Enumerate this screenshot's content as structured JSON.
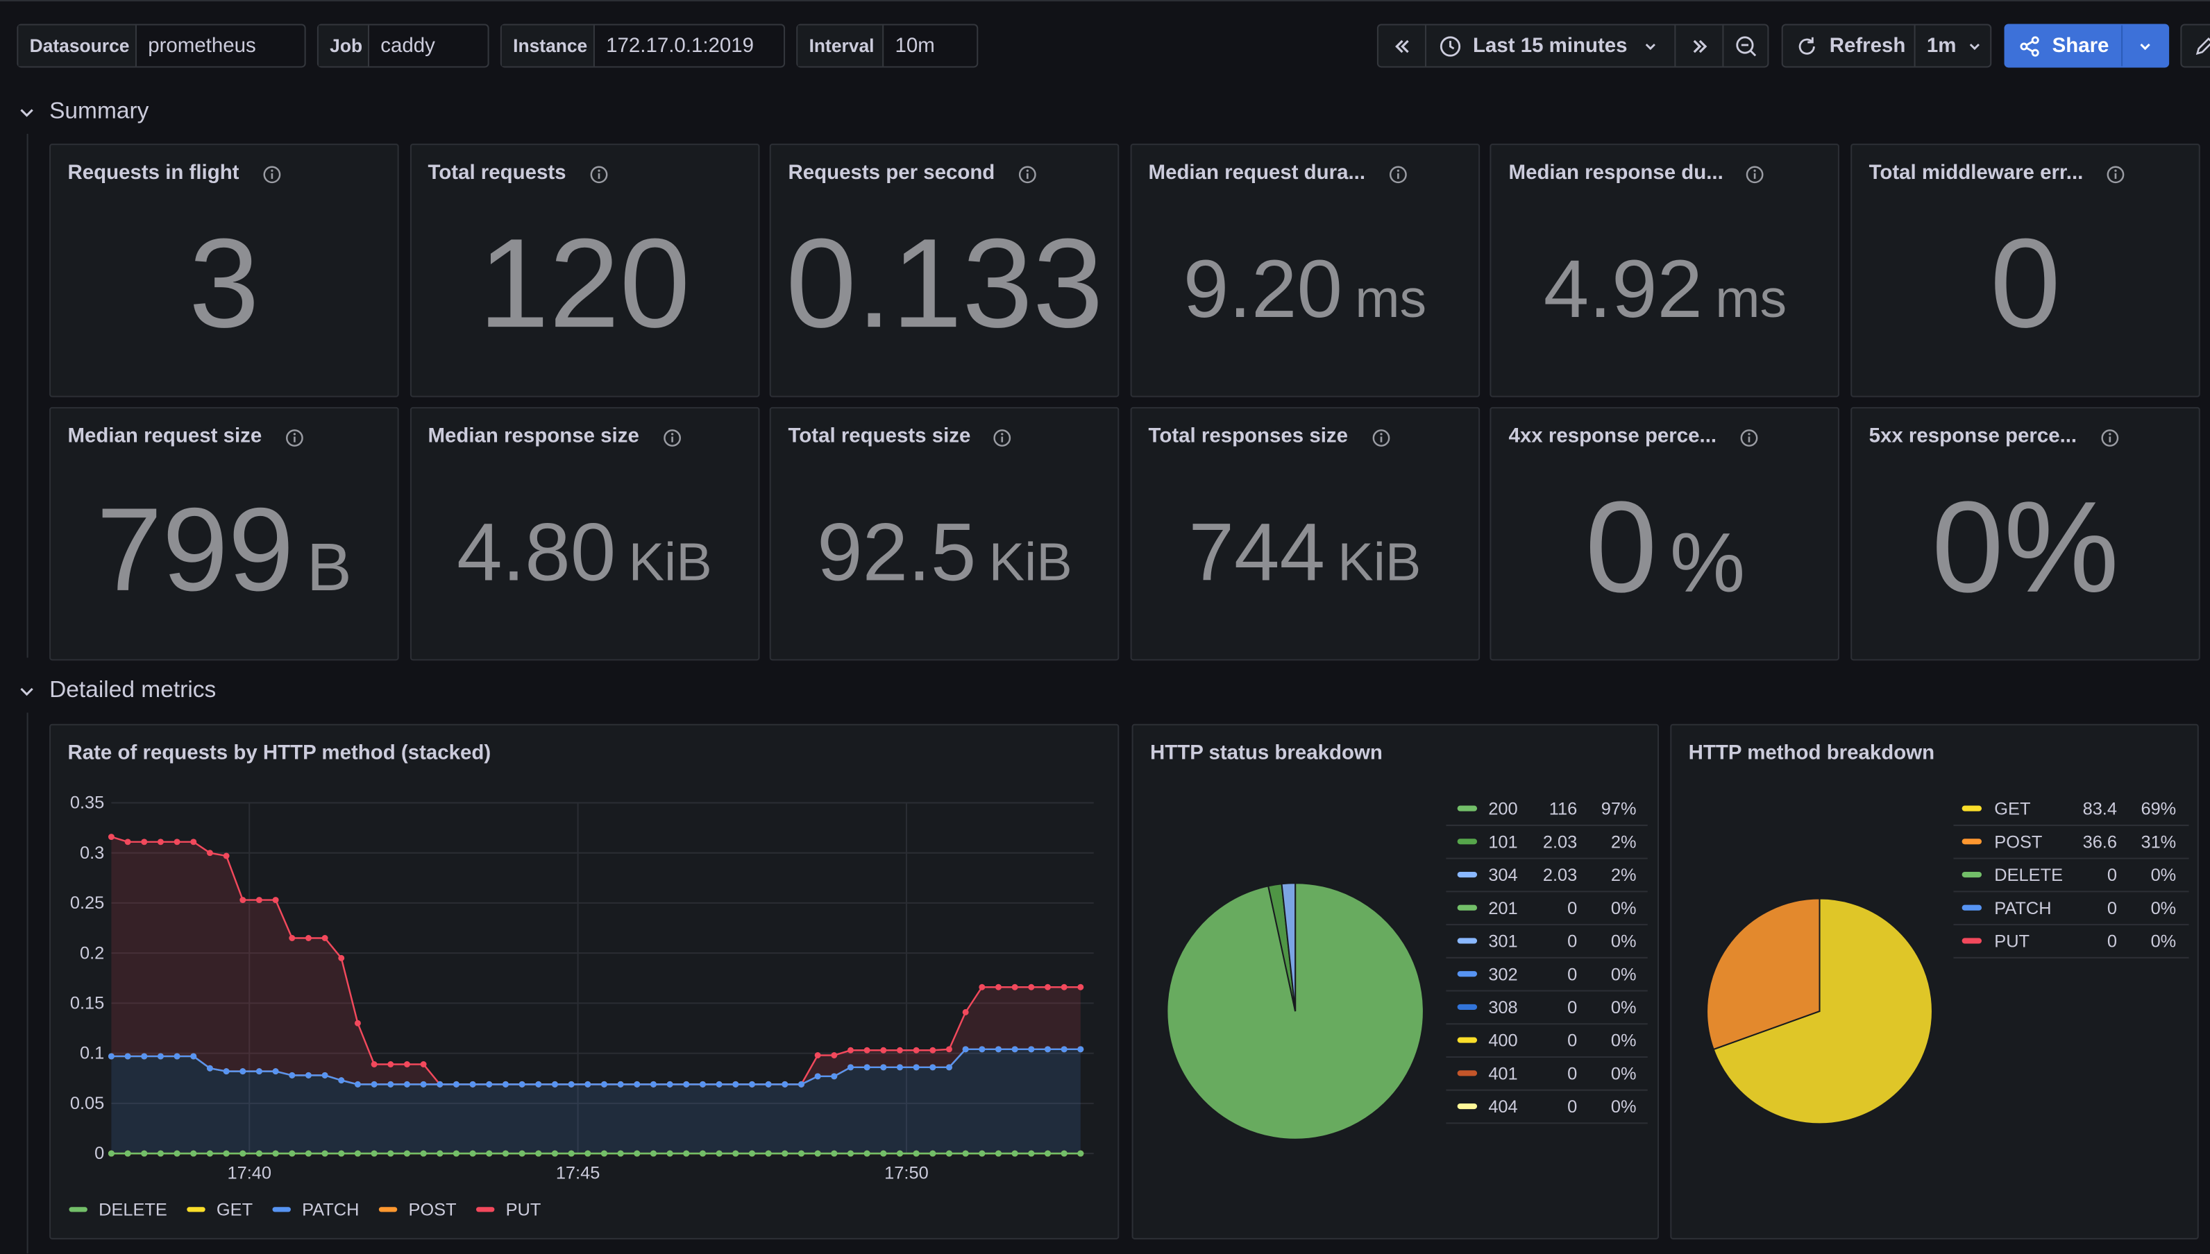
{
  "toolbar": {
    "variables": [
      {
        "label": "Datasource",
        "value": "prometheus"
      },
      {
        "label": "Job",
        "value": "caddy"
      },
      {
        "label": "Instance",
        "value": "172.17.0.1:2019"
      },
      {
        "label": "Interval",
        "value": "10m"
      }
    ],
    "time_range": "Last 15 minutes",
    "refresh": "Refresh",
    "refresh_interval": "1m",
    "share": "Share"
  },
  "rows": [
    {
      "title": "Summary"
    },
    {
      "title": "Detailed metrics"
    }
  ],
  "stats": [
    {
      "title": "Requests in flight",
      "value": "3"
    },
    {
      "title": "Total requests",
      "value": "120"
    },
    {
      "title": "Requests per second",
      "value": "0.133"
    },
    {
      "title": "Median request dura...",
      "value": "9.20",
      "unit": "ms"
    },
    {
      "title": "Median response du...",
      "value": "4.92",
      "unit": "ms"
    },
    {
      "title": "Total middleware err...",
      "value": "0"
    },
    {
      "title": "Median request size",
      "value": "799",
      "unit": "B"
    },
    {
      "title": "Median response size",
      "value": "4.80",
      "unit": "KiB"
    },
    {
      "title": "Total requests size",
      "value": "92.5",
      "unit": "KiB"
    },
    {
      "title": "Total responses size",
      "value": "744",
      "unit": "KiB"
    },
    {
      "title": "4xx response perce...",
      "value": "0",
      "unit": "%"
    },
    {
      "title": "5xx response perce...",
      "value": "0",
      "unit": "%"
    }
  ],
  "chart_data": [
    {
      "type": "line",
      "stacked": true,
      "title": "Rate of requests by HTTP method (stacked)",
      "x": [
        37.9,
        38.15,
        38.4,
        38.65,
        38.9,
        39.15,
        39.4,
        39.65,
        39.9,
        40.15,
        40.4,
        40.65,
        40.9,
        41.15,
        41.4,
        41.65,
        41.9,
        42.15,
        42.4,
        42.65,
        42.9,
        43.15,
        43.4,
        43.65,
        43.9,
        44.15,
        44.4,
        44.65,
        44.9,
        45.15,
        45.4,
        45.65,
        45.9,
        46.15,
        46.4,
        46.65,
        46.9,
        47.15,
        47.4,
        47.65,
        47.9,
        48.15,
        48.4,
        48.65,
        48.9,
        49.15,
        49.4,
        49.65,
        49.9,
        50.15,
        50.4,
        50.65,
        50.9,
        51.15,
        51.4,
        51.65,
        51.9,
        52.15,
        52.4,
        52.65
      ],
      "series": [
        {
          "name": "DELETE",
          "color": "#73bf69",
          "values": [
            0,
            0,
            0,
            0,
            0,
            0,
            0,
            0,
            0,
            0,
            0,
            0,
            0,
            0,
            0,
            0,
            0,
            0,
            0,
            0,
            0,
            0,
            0,
            0,
            0,
            0,
            0,
            0,
            0,
            0,
            0,
            0,
            0,
            0,
            0,
            0,
            0,
            0,
            0,
            0,
            0,
            0,
            0,
            0,
            0,
            0,
            0,
            0,
            0,
            0,
            0,
            0,
            0,
            0,
            0,
            0,
            0,
            0,
            0,
            0
          ]
        },
        {
          "name": "GET",
          "color": "#fade2a",
          "values": [
            0,
            0,
            0,
            0,
            0,
            0,
            0,
            0,
            0,
            0,
            0,
            0,
            0,
            0,
            0,
            0,
            0,
            0,
            0,
            0,
            0,
            0,
            0,
            0,
            0,
            0,
            0,
            0,
            0,
            0,
            0,
            0,
            0,
            0,
            0,
            0,
            0,
            0,
            0,
            0,
            0,
            0,
            0,
            0,
            0,
            0,
            0,
            0,
            0,
            0,
            0,
            0,
            0,
            0,
            0,
            0,
            0,
            0,
            0,
            0
          ]
        },
        {
          "name": "PATCH",
          "color": "#5794f2",
          "values": [
            0.097,
            0.097,
            0.097,
            0.097,
            0.097,
            0.097,
            0.085,
            0.082,
            0.082,
            0.082,
            0.082,
            0.078,
            0.078,
            0.078,
            0.073,
            0.069,
            0.069,
            0.069,
            0.069,
            0.069,
            0.069,
            0.069,
            0.069,
            0.069,
            0.069,
            0.069,
            0.069,
            0.069,
            0.069,
            0.069,
            0.069,
            0.069,
            0.069,
            0.069,
            0.069,
            0.069,
            0.069,
            0.069,
            0.069,
            0.069,
            0.069,
            0.069,
            0.069,
            0.077,
            0.077,
            0.086,
            0.086,
            0.086,
            0.086,
            0.086,
            0.086,
            0.086,
            0.104,
            0.104,
            0.104,
            0.104,
            0.104,
            0.104,
            0.104,
            0.104
          ]
        },
        {
          "name": "POST",
          "color": "#ff9830",
          "values": [
            0,
            0,
            0,
            0,
            0,
            0,
            0,
            0,
            0,
            0,
            0,
            0,
            0,
            0,
            0,
            0,
            0,
            0,
            0,
            0,
            0,
            0,
            0,
            0,
            0,
            0,
            0,
            0,
            0,
            0,
            0,
            0,
            0,
            0,
            0,
            0,
            0,
            0,
            0,
            0,
            0,
            0,
            0,
            0,
            0,
            0,
            0,
            0,
            0,
            0,
            0,
            0,
            0,
            0,
            0,
            0,
            0,
            0,
            0,
            0
          ]
        },
        {
          "name": "PUT",
          "color": "#f2495c",
          "values": [
            0.219,
            0.214,
            0.214,
            0.214,
            0.214,
            0.214,
            0.215,
            0.215,
            0.171,
            0.171,
            0.171,
            0.137,
            0.137,
            0.137,
            0.122,
            0.061,
            0.02,
            0.02,
            0.02,
            0.02,
            0,
            0,
            0,
            0,
            0,
            0,
            0,
            0,
            0,
            0,
            0,
            0,
            0,
            0,
            0,
            0,
            0,
            0,
            0,
            0,
            0,
            0,
            0,
            0.021,
            0.021,
            0.017,
            0.017,
            0.017,
            0.017,
            0.017,
            0.017,
            0.018,
            0.037,
            0.062,
            0.062,
            0.062,
            0.062,
            0.062,
            0.062,
            0.062
          ]
        }
      ],
      "xlim": [
        37.9,
        52.85
      ],
      "ylim": [
        0,
        0.35
      ],
      "xticks": [
        {
          "value": 40,
          "label": "17:40"
        },
        {
          "value": 45,
          "label": "17:45"
        },
        {
          "value": 50,
          "label": "17:50"
        }
      ],
      "yticks": [
        0,
        0.05,
        0.1,
        0.15,
        0.2,
        0.25,
        0.3,
        0.35
      ],
      "grid": true,
      "legend": "bottom"
    },
    {
      "type": "pie",
      "title": "HTTP status breakdown",
      "categories": [
        "200",
        "101",
        "304",
        "201",
        "301",
        "302",
        "308",
        "400",
        "401",
        "404"
      ],
      "values": [
        116,
        2.03,
        2.03,
        0,
        0,
        0,
        0,
        0,
        0,
        0
      ],
      "percent_labels": [
        "97%",
        "2%",
        "2%",
        "0%",
        "0%",
        "0%",
        "0%",
        "0%",
        "0%",
        "0%"
      ],
      "colors": [
        "#73bf69",
        "#56a64b",
        "#8ab8ff",
        "#73bf69",
        "#8ab8ff",
        "#5794f2",
        "#3274d9",
        "#fade2a",
        "#c4562a",
        "#fff899"
      ],
      "legend": "right"
    },
    {
      "type": "pie",
      "title": "HTTP method breakdown",
      "categories": [
        "GET",
        "POST",
        "DELETE",
        "PATCH",
        "PUT"
      ],
      "values": [
        83.4,
        36.6,
        0,
        0,
        0
      ],
      "percent_labels": [
        "69%",
        "31%",
        "0%",
        "0%",
        "0%"
      ],
      "colors": [
        "#fade2a",
        "#ff9830",
        "#73bf69",
        "#5794f2",
        "#f2495c"
      ],
      "legend": "right"
    }
  ]
}
